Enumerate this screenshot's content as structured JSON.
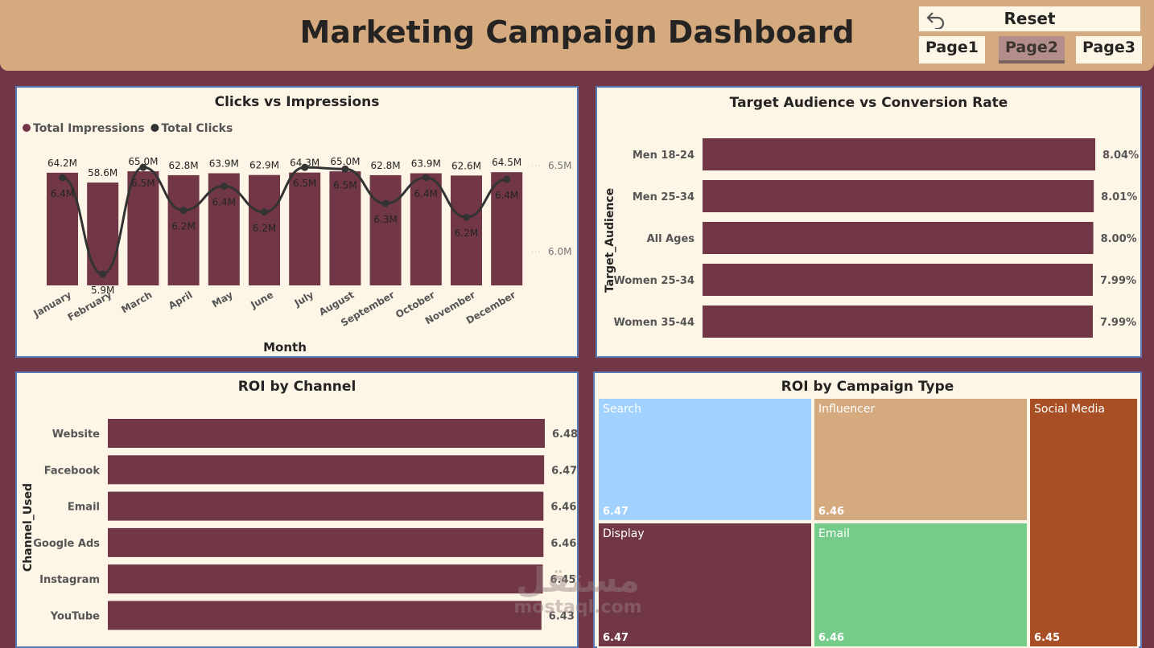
{
  "header": {
    "title": "Marketing Campaign Dashboard",
    "reset_label": "Reset",
    "pages": [
      "Page1",
      "Page2",
      "Page3"
    ],
    "active_page": "Page2"
  },
  "colors": {
    "background": "#723746",
    "header": "#d6aa7f",
    "panel": "#fdf5e6",
    "bar": "#723746",
    "line": "#333333",
    "search": "#a0d1ff",
    "influencer": "#d6aa7f",
    "social_media": "#a84f25",
    "display": "#723746",
    "email": "#75cc8a"
  },
  "watermark": {
    "arabic": "مستقل",
    "latin": "mostaql.com"
  },
  "panels": {
    "clicks_impressions": {
      "title": "Clicks vs Impressions"
    },
    "target_audience": {
      "title": "Target Audience vs Conversion Rate"
    },
    "roi_channel": {
      "title": "ROI by Channel"
    },
    "roi_campaign": {
      "title": "ROI by Campaign Type"
    }
  },
  "chart_data": [
    {
      "type": "bar",
      "title": "Clicks vs Impressions",
      "xlabel": "Month",
      "categories": [
        "January",
        "February",
        "March",
        "April",
        "May",
        "June",
        "July",
        "August",
        "September",
        "October",
        "November",
        "December"
      ],
      "series": [
        {
          "name": "Total Impressions",
          "kind": "bar",
          "values": [
            64.2,
            58.6,
            65.0,
            62.8,
            63.9,
            62.9,
            64.3,
            65.0,
            62.8,
            63.9,
            62.6,
            64.5
          ],
          "labels": [
            "64.2M",
            "58.6M",
            "65.0M",
            "62.8M",
            "63.9M",
            "62.9M",
            "64.3M",
            "65.0M",
            "62.8M",
            "63.9M",
            "62.6M",
            "64.5M"
          ]
        },
        {
          "name": "Total Clicks",
          "kind": "line",
          "values": [
            6.43,
            5.87,
            6.49,
            6.24,
            6.38,
            6.23,
            6.49,
            6.48,
            6.28,
            6.43,
            6.2,
            6.42
          ],
          "labels": [
            "6.4M",
            "5.9M",
            "6.5M",
            "6.2M",
            "6.4M",
            "6.2M",
            "6.5M",
            "6.5M",
            "6.3M",
            "6.4M",
            "6.2M",
            "6.4M"
          ]
        }
      ],
      "secondary_ticks": [
        "6.5M",
        "6.0M"
      ],
      "legend_position": "top-left"
    },
    {
      "type": "bar",
      "orientation": "horizontal",
      "title": "Target Audience vs Conversion Rate",
      "ylabel": "Target_Audience",
      "categories": [
        "Men 18-24",
        "Men 25-34",
        "All Ages",
        "Women 25-34",
        "Women 35-44"
      ],
      "values": [
        8.04,
        8.01,
        8.0,
        7.99,
        7.99
      ],
      "labels": [
        "8.04%",
        "8.01%",
        "8.00%",
        "7.99%",
        "7.99%"
      ]
    },
    {
      "type": "bar",
      "orientation": "horizontal",
      "title": "ROI by Channel",
      "ylabel": "Channel_Used",
      "categories": [
        "Website",
        "Facebook",
        "Email",
        "Google Ads",
        "Instagram",
        "YouTube"
      ],
      "values": [
        6.48,
        6.47,
        6.46,
        6.46,
        6.45,
        6.43
      ],
      "labels": [
        "6.48",
        "6.47",
        "6.46",
        "6.46",
        "6.45",
        "6.43"
      ]
    },
    {
      "type": "treemap",
      "title": "ROI by Campaign Type",
      "items": [
        {
          "name": "Search",
          "value": 6.47,
          "label": "6.47"
        },
        {
          "name": "Influencer",
          "value": 6.46,
          "label": "6.46"
        },
        {
          "name": "Social Media",
          "value": 6.45,
          "label": "6.45"
        },
        {
          "name": "Display",
          "value": 6.47,
          "label": "6.47"
        },
        {
          "name": "Email",
          "value": 6.46,
          "label": "6.46"
        }
      ]
    }
  ]
}
